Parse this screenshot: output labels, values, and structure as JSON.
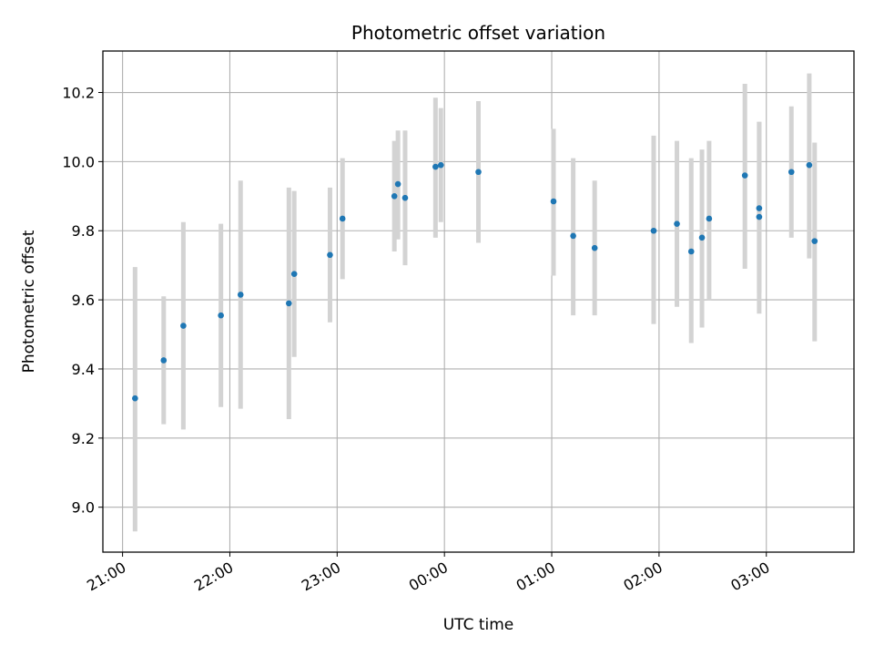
{
  "chart_data": {
    "type": "scatter",
    "title": "Photometric offset variation",
    "xlabel": "UTC time",
    "ylabel": "Photometric offset",
    "x_axis_type": "time",
    "x_range": [
      "20:49",
      "03:49"
    ],
    "ylim": [
      8.87,
      10.32
    ],
    "x_ticks": [
      "21:00",
      "22:00",
      "23:00",
      "00:00",
      "01:00",
      "02:00",
      "03:00"
    ],
    "y_ticks": [
      9.0,
      9.2,
      9.4,
      9.6,
      9.8,
      10.0,
      10.2
    ],
    "grid": true,
    "legend": false,
    "marker_color": "#1f77b4",
    "errorbar_color": "#d3d3d3",
    "points": [
      {
        "time": "21:07",
        "y": 9.315,
        "ylo": 8.93,
        "yhi": 9.695
      },
      {
        "time": "21:23",
        "y": 9.425,
        "ylo": 9.24,
        "yhi": 9.61
      },
      {
        "time": "21:34",
        "y": 9.525,
        "ylo": 9.225,
        "yhi": 9.825
      },
      {
        "time": "21:55",
        "y": 9.555,
        "ylo": 9.29,
        "yhi": 9.82
      },
      {
        "time": "22:06",
        "y": 9.615,
        "ylo": 9.285,
        "yhi": 9.945
      },
      {
        "time": "22:33",
        "y": 9.59,
        "ylo": 9.255,
        "yhi": 9.925
      },
      {
        "time": "22:36",
        "y": 9.675,
        "ylo": 9.435,
        "yhi": 9.915
      },
      {
        "time": "22:56",
        "y": 9.73,
        "ylo": 9.535,
        "yhi": 9.925
      },
      {
        "time": "23:03",
        "y": 9.835,
        "ylo": 9.66,
        "yhi": 10.01
      },
      {
        "time": "23:32",
        "y": 9.9,
        "ylo": 9.74,
        "yhi": 10.06
      },
      {
        "time": "23:34",
        "y": 9.935,
        "ylo": 9.775,
        "yhi": 10.09
      },
      {
        "time": "23:38",
        "y": 9.895,
        "ylo": 9.7,
        "yhi": 10.09
      },
      {
        "time": "23:55",
        "y": 9.985,
        "ylo": 9.78,
        "yhi": 10.185
      },
      {
        "time": "23:58",
        "y": 9.99,
        "ylo": 9.825,
        "yhi": 10.155
      },
      {
        "time": "00:19",
        "y": 9.97,
        "ylo": 9.765,
        "yhi": 10.175
      },
      {
        "time": "01:01",
        "y": 9.885,
        "ylo": 9.67,
        "yhi": 10.095
      },
      {
        "time": "01:12",
        "y": 9.785,
        "ylo": 9.555,
        "yhi": 10.01
      },
      {
        "time": "01:24",
        "y": 9.75,
        "ylo": 9.555,
        "yhi": 9.945
      },
      {
        "time": "01:57",
        "y": 9.8,
        "ylo": 9.53,
        "yhi": 10.075
      },
      {
        "time": "02:10",
        "y": 9.82,
        "ylo": 9.58,
        "yhi": 10.06
      },
      {
        "time": "02:18",
        "y": 9.74,
        "ylo": 9.475,
        "yhi": 10.01
      },
      {
        "time": "02:24",
        "y": 9.78,
        "ylo": 9.52,
        "yhi": 10.035
      },
      {
        "time": "02:28",
        "y": 9.835,
        "ylo": 9.6,
        "yhi": 10.06
      },
      {
        "time": "02:48",
        "y": 9.96,
        "ylo": 9.69,
        "yhi": 10.225
      },
      {
        "time": "02:56",
        "y": 9.865,
        "ylo": 9.62,
        "yhi": 10.115
      },
      {
        "time": "02:56",
        "y": 9.84,
        "ylo": 9.56,
        "yhi": 10.115
      },
      {
        "time": "03:14",
        "y": 9.97,
        "ylo": 9.78,
        "yhi": 10.16
      },
      {
        "time": "03:24",
        "y": 9.99,
        "ylo": 9.72,
        "yhi": 10.255
      },
      {
        "time": "03:27",
        "y": 9.77,
        "ylo": 9.48,
        "yhi": 10.055
      }
    ]
  }
}
